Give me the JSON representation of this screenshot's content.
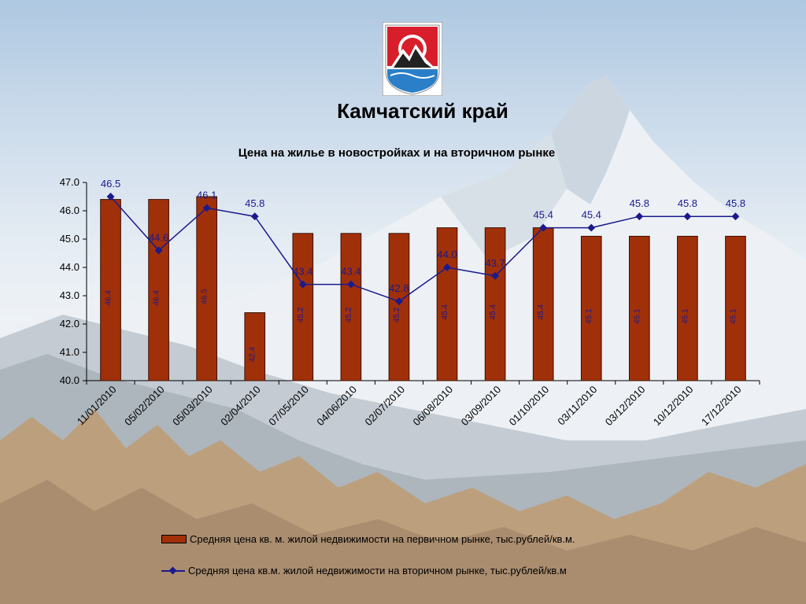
{
  "region_title": "Камчатский край",
  "colors": {
    "bar": "#a0300a",
    "bar_border": "#3a1000",
    "line": "#1a1a8c",
    "label_top": "#1a1a8c",
    "label_inside": "#1a1a8c"
  },
  "chart_data": {
    "type": "bar",
    "title": "Цена на жилье в новостройках и на вторичном рынке",
    "xlabel": "",
    "ylabel": "",
    "ylim": [
      40.0,
      47.0
    ],
    "ytick_labels": [
      "40.0",
      "41.0",
      "42.0",
      "43.0",
      "44.0",
      "45.0",
      "46.0",
      "47.0"
    ],
    "categories": [
      "11/01/2010",
      "05/02/2010",
      "05/03/2010",
      "02/04/2010",
      "07/05/2010",
      "04/06/2010",
      "02/07/2010",
      "06/08/2010",
      "03/09/2010",
      "01/10/2010",
      "03/11/2010",
      "03/12/2010",
      "10/12/2010",
      "17/12/2010"
    ],
    "series": [
      {
        "name": "Средняя цена кв. м. жилой недвижимости на первичном рынке, тыс.рублей/кв.м.",
        "type": "bar",
        "values": [
          46.4,
          46.4,
          46.5,
          42.4,
          45.2,
          45.2,
          45.2,
          45.4,
          45.4,
          45.4,
          45.1,
          45.1,
          45.1,
          45.1
        ],
        "labels": [
          "46.4",
          "46.4",
          "46.5",
          "42.4",
          "45.2",
          "45.2",
          "45.2",
          "45.4",
          "45.4",
          "45.4",
          "45.1",
          "45.1",
          "45.1",
          "45.1"
        ]
      },
      {
        "name": "Средняя цена кв.м. жилой недвижимости на вторичном рынке, тыс.рублей/кв.м",
        "type": "line",
        "values": [
          46.5,
          44.6,
          46.1,
          45.8,
          43.4,
          43.4,
          42.8,
          44.0,
          43.7,
          45.4,
          45.4,
          45.8,
          45.8,
          45.8
        ],
        "labels": [
          "46.5",
          "44.6",
          "46.1",
          "45.8",
          "43.4",
          "43.4",
          "42.8",
          "44.0",
          "43.7",
          "45.4",
          "45.4",
          "45.8",
          "45.8",
          "45.8"
        ]
      }
    ],
    "legend_position": "bottom",
    "grid": false
  }
}
